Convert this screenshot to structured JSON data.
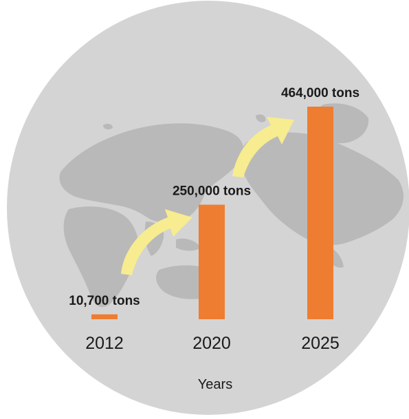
{
  "colors": {
    "background_circle": "#d4d4d4",
    "land": "#b9b9b9",
    "bar": "#ee7d31",
    "arrow": "#f7ec8f",
    "text": "#1a1a1a"
  },
  "icons": [
    "arrow-up-right-icon"
  ],
  "chart_data": {
    "type": "bar",
    "categories": [
      "2012",
      "2020",
      "2025"
    ],
    "values": [
      10700,
      250000,
      464000
    ],
    "data_labels": [
      "10,700 tons",
      "250,000 tons",
      "464,000 tons"
    ],
    "title": "",
    "xlabel": "Years",
    "ylabel": "",
    "ylim": [
      0,
      464000
    ],
    "grid": false,
    "legend": "none"
  }
}
